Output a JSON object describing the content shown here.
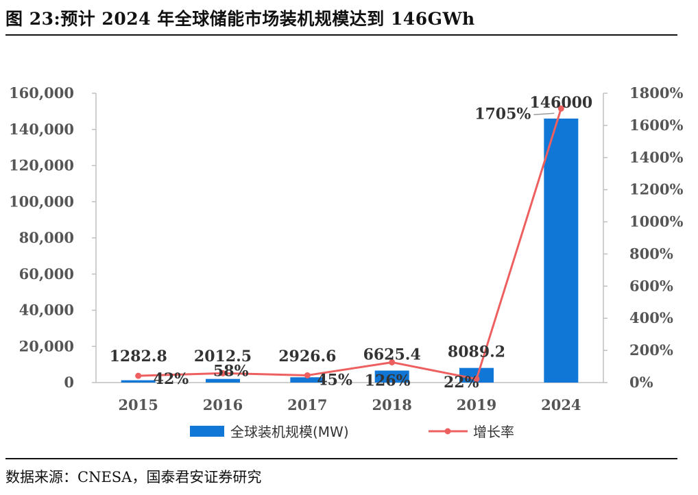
{
  "title": "图 23:预计 2024 年全球储能市场装机规模达到 146GWh",
  "source": "数据来源：CNESA，国泰君安证券研究",
  "colors": {
    "bar": "#1177D6",
    "line": "#EE5F5F",
    "axis": "#bfbfbf",
    "text": "#555555"
  },
  "chart_data": {
    "type": "bar",
    "categories": [
      "2015",
      "2016",
      "2017",
      "2018",
      "2019",
      "2024"
    ],
    "series": [
      {
        "name": "全球装机规模(MW)",
        "type": "bar",
        "axis": "left",
        "values": [
          1282.8,
          2012.5,
          2926.6,
          6625.4,
          8089.2,
          146000
        ],
        "labels": [
          "1282.8",
          "2012.5",
          "2926.6",
          "6625.4",
          "8089.2",
          "146000"
        ]
      },
      {
        "name": "增长率",
        "type": "line",
        "axis": "right",
        "values": [
          42,
          58,
          45,
          126,
          22,
          1705
        ],
        "labels": [
          "42%",
          "58%",
          "45%",
          "126%",
          "22%",
          "1705%"
        ]
      }
    ],
    "y_left": {
      "min": 0,
      "max": 160000,
      "step": 20000,
      "ticks": [
        "0",
        "20,000",
        "40,000",
        "60,000",
        "80,000",
        "100,000",
        "120,000",
        "140,000",
        "160,000"
      ]
    },
    "y_right": {
      "min": 0,
      "max": 1800,
      "step": 200,
      "ticks": [
        "0%",
        "200%",
        "400%",
        "600%",
        "800%",
        "1000%",
        "1200%",
        "1400%",
        "1600%",
        "1800%"
      ]
    },
    "grid": false,
    "legend": "bottom"
  }
}
